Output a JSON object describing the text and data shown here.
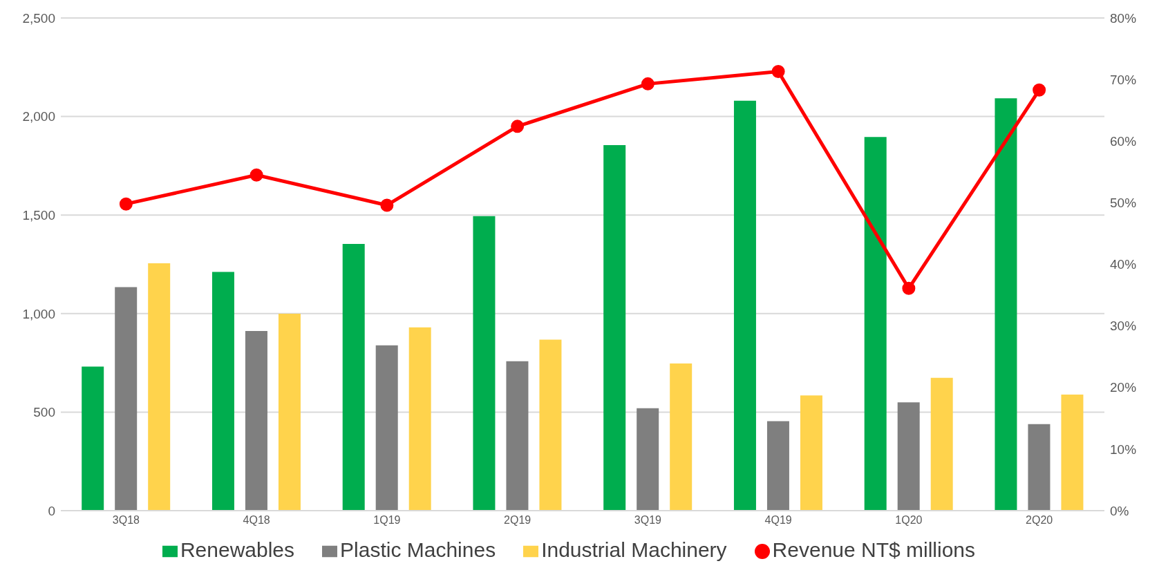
{
  "chart_data": {
    "type": "bar",
    "categories": [
      "3Q18",
      "4Q18",
      "1Q19",
      "2Q19",
      "3Q19",
      "4Q19",
      "1Q20",
      "2Q20"
    ],
    "series": [
      {
        "name": "Renewables",
        "color": "#00ad4e",
        "values": [
          731,
          1211,
          1353,
          1495,
          1855,
          2080,
          1896,
          2092
        ]
      },
      {
        "name": "Plastic Machines",
        "color": "#7f7f7f",
        "values": [
          1134,
          912,
          839,
          758,
          520,
          454,
          550,
          439
        ]
      },
      {
        "name": "Industrial Machinery",
        "color": "#ffd34c",
        "values": [
          1255,
          999,
          930,
          868,
          747,
          585,
          674,
          589
        ]
      },
      {
        "name": "Revenue NT$ millions",
        "color": "#ff0000",
        "type": "line",
        "axis": "y2",
        "marker": "circle",
        "values": [
          49.8,
          54.5,
          49.6,
          62.4,
          69.3,
          71.3,
          36.1,
          68.3
        ]
      }
    ],
    "ylim": [
      0,
      2500
    ],
    "yticks": [
      {
        "value": 0,
        "label": "0"
      },
      {
        "value": 500,
        "label": "500"
      },
      {
        "value": 1000,
        "label": "1,000"
      },
      {
        "value": 1500,
        "label": "1,500"
      },
      {
        "value": 2000,
        "label": "2,000"
      },
      {
        "value": 2500,
        "label": "2,500"
      }
    ],
    "y2lim": [
      0,
      80
    ],
    "y2ticks": [
      {
        "value": 0,
        "label": "0%"
      },
      {
        "value": 10,
        "label": "10%"
      },
      {
        "value": 20,
        "label": "20%"
      },
      {
        "value": 30,
        "label": "30%"
      },
      {
        "value": 40,
        "label": "40%"
      },
      {
        "value": 50,
        "label": "50%"
      },
      {
        "value": 60,
        "label": "60%"
      },
      {
        "value": 70,
        "label": "70%"
      },
      {
        "value": 80,
        "label": "80%"
      }
    ],
    "grid": "y",
    "legend": "bottom"
  }
}
